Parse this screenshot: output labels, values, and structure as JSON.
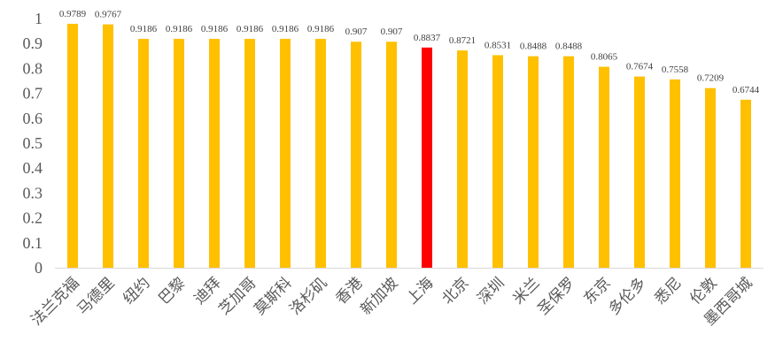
{
  "chart_data": {
    "type": "bar",
    "categories": [
      "法兰克福",
      "马德里",
      "纽约",
      "巴黎",
      "迪拜",
      "芝加哥",
      "莫斯科",
      "洛杉矶",
      "香港",
      "新加坡",
      "上海",
      "北京",
      "深圳",
      "米兰",
      "圣保罗",
      "东京",
      "多伦多",
      "悉尼",
      "伦敦",
      "墨西哥城"
    ],
    "values": [
      0.9789,
      0.9767,
      0.9186,
      0.9186,
      0.9186,
      0.9186,
      0.9186,
      0.9186,
      0.907,
      0.907,
      0.8837,
      0.8721,
      0.8531,
      0.8488,
      0.8488,
      0.8065,
      0.7674,
      0.7558,
      0.7209,
      0.6744
    ],
    "data_labels": [
      "0.9789",
      "0.9767",
      "0.9186",
      "0.9186",
      "0.9186",
      "0.9186",
      "0.9186",
      "0.9186",
      "0.907",
      "0.907",
      "0.8837",
      "0.8721",
      "0.8531",
      "0.8488",
      "0.8488",
      "0.8065",
      "0.7674",
      "0.7558",
      "0.7209",
      "0.6744"
    ],
    "highlight_category": "上海",
    "ylim": [
      0,
      1
    ],
    "yticks": [
      "0",
      "0.1",
      "0.2",
      "0.3",
      "0.4",
      "0.5",
      "0.6",
      "0.7",
      "0.8",
      "0.9",
      "1"
    ],
    "grid": false,
    "legend": "none",
    "title": "",
    "xlabel": "",
    "ylabel": "",
    "colors": {
      "bar": "#FFC000",
      "highlight": "#FF0000",
      "axis": "#D9D9D9"
    }
  }
}
